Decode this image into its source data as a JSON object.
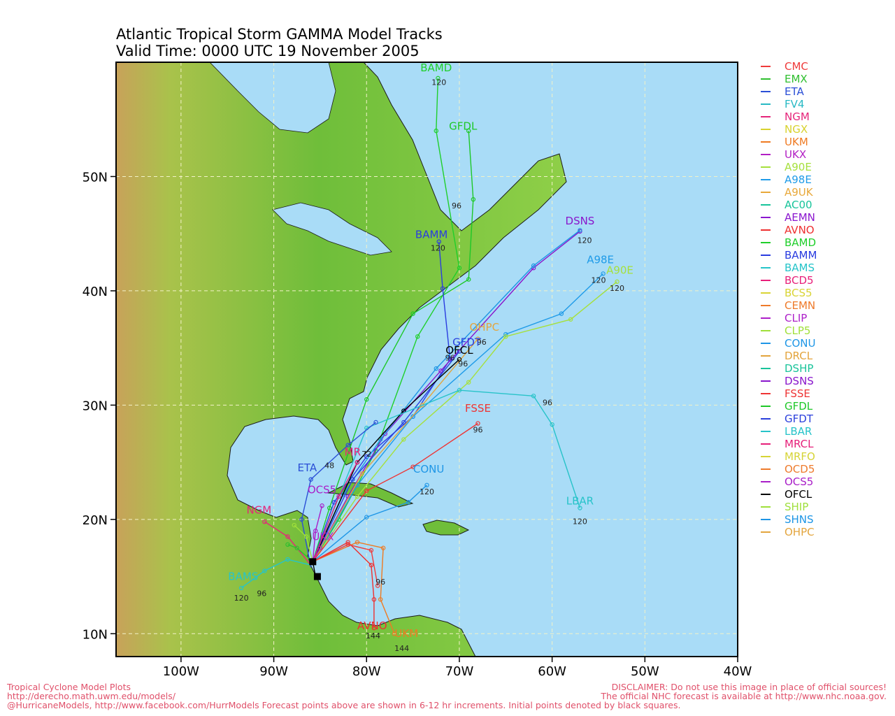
{
  "title": {
    "line1": "Atlantic Tropical Storm GAMMA Model Tracks",
    "line2": "Valid Time: 0000 UTC 19 November 2005"
  },
  "axes": {
    "lat_labels": [
      "10N",
      "20N",
      "30N",
      "40N",
      "50N"
    ],
    "lat_values": [
      10,
      20,
      30,
      40,
      50
    ],
    "lon_labels": [
      "100W",
      "90W",
      "80W",
      "70W",
      "60W",
      "50W",
      "40W"
    ],
    "lon_values": [
      -100,
      -90,
      -80,
      -70,
      -60,
      -50,
      -40
    ],
    "lon_range": [
      -107,
      -40
    ],
    "lat_range": [
      8,
      60
    ]
  },
  "colors": {
    "ocean": "#a9dcf7",
    "land_low": "#6fbe3a",
    "land_high": "#b58e45",
    "grid": "#f2f2c8",
    "footer": "#e0506a"
  },
  "legend": [
    {
      "label": "CMC",
      "color": "#ef3b3b"
    },
    {
      "label": "EMX",
      "color": "#2fbf2f"
    },
    {
      "label": "ETA",
      "color": "#2b4fd6"
    },
    {
      "label": "FV4",
      "color": "#28b9c4"
    },
    {
      "label": "NGM",
      "color": "#e5257a"
    },
    {
      "label": "NGX",
      "color": "#d8d22e"
    },
    {
      "label": "UKM",
      "color": "#ef7a22"
    },
    {
      "label": "UKX",
      "color": "#b21fc4"
    },
    {
      "label": "A90E",
      "color": "#a6e03c"
    },
    {
      "label": "A98E",
      "color": "#1f9be8"
    },
    {
      "label": "A9UK",
      "color": "#e8a83a"
    },
    {
      "label": "AC00",
      "color": "#17c49a"
    },
    {
      "label": "AEMN",
      "color": "#8b17cf"
    },
    {
      "label": "AVNO",
      "color": "#ee3030"
    },
    {
      "label": "BAMD",
      "color": "#1fcf2a"
    },
    {
      "label": "BAMM",
      "color": "#2a3ce0"
    },
    {
      "label": "BAMS",
      "color": "#26c4c9"
    },
    {
      "label": "BCD5",
      "color": "#e8207a"
    },
    {
      "label": "BCS5",
      "color": "#d9d435"
    },
    {
      "label": "CEMN",
      "color": "#ee7a2a"
    },
    {
      "label": "CLIP",
      "color": "#ad1fc9"
    },
    {
      "label": "CLP5",
      "color": "#a0e03a"
    },
    {
      "label": "CONU",
      "color": "#1e96e6"
    },
    {
      "label": "DRCL",
      "color": "#e3a43c"
    },
    {
      "label": "DSHP",
      "color": "#19c39a"
    },
    {
      "label": "DSNS",
      "color": "#8916cc"
    },
    {
      "label": "FSSE",
      "color": "#ee3434"
    },
    {
      "label": "GFDL",
      "color": "#1ec828"
    },
    {
      "label": "GFDT",
      "color": "#2b3fdc"
    },
    {
      "label": "LBAR",
      "color": "#27c3c9"
    },
    {
      "label": "MRCL",
      "color": "#e61f79"
    },
    {
      "label": "MRFO",
      "color": "#d6d436"
    },
    {
      "label": "OCD5",
      "color": "#ee7b2c"
    },
    {
      "label": "OCS5",
      "color": "#a91ec8"
    },
    {
      "label": "OFCL",
      "color": "#000000"
    },
    {
      "label": "SHIP",
      "color": "#9fdf3b"
    },
    {
      "label": "SHNS",
      "color": "#1d95e5"
    },
    {
      "label": "OHPC",
      "color": "#e3a53e"
    }
  ],
  "tracks": [
    {
      "name": "BAMD",
      "color": "#1fcf2a",
      "label": "BAMD",
      "label_at": [
        -72.5,
        59.2
      ],
      "tau_labels": [
        {
          "text": "120",
          "at": [
            -72.2,
            58.0
          ]
        }
      ],
      "points": [
        [
          -85.8,
          16.3
        ],
        [
          -83,
          20
        ],
        [
          -79,
          26
        ],
        [
          -74.5,
          36
        ],
        [
          -70,
          42
        ],
        [
          -72.5,
          54
        ],
        [
          -72.3,
          58.6
        ]
      ]
    },
    {
      "name": "GFDL",
      "color": "#1ec828",
      "label": "GFDL",
      "label_at": [
        -69.6,
        54.1
      ],
      "tau_labels": [
        {
          "text": "96",
          "at": [
            -70.3,
            47.2
          ]
        }
      ],
      "points": [
        [
          -85.8,
          16.3
        ],
        [
          -84,
          21
        ],
        [
          -80,
          30.5
        ],
        [
          -75,
          38
        ],
        [
          -69,
          41
        ],
        [
          -68.5,
          48
        ],
        [
          -69,
          54
        ]
      ]
    },
    {
      "name": "BAMM",
      "color": "#2a3ce0",
      "label": "BAMM",
      "label_at": [
        -73,
        44.6
      ],
      "tau_labels": [
        {
          "text": "120",
          "at": [
            -72.3,
            43.5
          ]
        }
      ],
      "points": [
        [
          -85.8,
          16.3
        ],
        [
          -83.5,
          21.5
        ],
        [
          -80,
          25.5
        ],
        [
          -75,
          29
        ],
        [
          -71,
          34
        ],
        [
          -71.8,
          40.2
        ],
        [
          -72.2,
          44.3
        ]
      ]
    },
    {
      "name": "DSNS",
      "color": "#8916cc",
      "label": "DSNS",
      "label_at": [
        -57,
        45.8
      ],
      "tau_labels": [
        {
          "text": "120",
          "at": [
            -56.5,
            44.2
          ]
        }
      ],
      "points": [
        [
          -85.8,
          16.3
        ],
        [
          -82,
          22
        ],
        [
          -78,
          27.5
        ],
        [
          -72,
          33
        ],
        [
          -62,
          42
        ],
        [
          -57,
          45.2
        ]
      ]
    },
    {
      "name": "SHNS",
      "color": "#1d95e5",
      "label": "",
      "label_at": [
        0,
        0
      ],
      "tau_labels": [],
      "points": [
        [
          -85.8,
          16.3
        ],
        [
          -82.5,
          22.2
        ],
        [
          -78.5,
          27
        ],
        [
          -72.5,
          33.2
        ],
        [
          -62,
          42.2
        ],
        [
          -57,
          45.3
        ]
      ]
    },
    {
      "name": "A98E",
      "color": "#1f9be8",
      "label": "A98E",
      "label_at": [
        -54.8,
        42.4
      ],
      "tau_labels": [
        {
          "text": "120",
          "at": [
            -55,
            40.7
          ]
        }
      ],
      "points": [
        [
          -85.8,
          16.3
        ],
        [
          -81,
          23
        ],
        [
          -75,
          29
        ],
        [
          -65,
          36.2
        ],
        [
          -59,
          38
        ],
        [
          -54.5,
          41.5
        ]
      ]
    },
    {
      "name": "A90E",
      "color": "#a6e03c",
      "label": "A90E",
      "label_at": [
        -52.7,
        41.5
      ],
      "tau_labels": [
        {
          "text": "120",
          "at": [
            -53,
            40
          ]
        }
      ],
      "points": [
        [
          -85.8,
          16.3
        ],
        [
          -81,
          22
        ],
        [
          -76,
          27
        ],
        [
          -69,
          32
        ],
        [
          -65,
          36
        ],
        [
          -58,
          37.5
        ],
        [
          -53,
          40.8
        ]
      ]
    },
    {
      "name": "OHPC",
      "color": "#e3a53e",
      "label": "OHPC",
      "label_at": [
        -67.3,
        36.5
      ],
      "tau_labels": [
        {
          "text": "96",
          "at": [
            -67.6,
            35.3
          ]
        }
      ],
      "points": [
        [
          -85.8,
          16.3
        ],
        [
          -80.5,
          24
        ],
        [
          -74,
          30
        ],
        [
          -68,
          35.8
        ]
      ]
    },
    {
      "name": "GFDT",
      "color": "#2b3fdc",
      "label": "GFDT",
      "label_at": [
        -69.2,
        35.2
      ],
      "tau_labels": [
        {
          "text": "96",
          "at": [
            -71,
            33.9
          ]
        }
      ],
      "points": [
        [
          -85.8,
          16.3
        ],
        [
          -81.5,
          23.5
        ],
        [
          -76,
          28.5
        ],
        [
          -70,
          34.7
        ]
      ]
    },
    {
      "name": "OFCL",
      "color": "#000000",
      "label": "OFCL",
      "label_at": [
        -70,
        34.5
      ],
      "tau_labels": [
        {
          "text": "96",
          "at": [
            -69.6,
            33.4
          ]
        }
      ],
      "points": [
        [
          -85.5,
          15
        ],
        [
          -85.8,
          16.3
        ],
        [
          -81,
          25
        ],
        [
          -76,
          29.5
        ],
        [
          -70,
          34
        ]
      ]
    },
    {
      "name": "LBAR",
      "color": "#27c3c9",
      "label": "LBAR",
      "label_at": [
        -57,
        21.3
      ],
      "tau_labels": [
        {
          "text": "96",
          "at": [
            -60.5,
            30
          ]
        },
        {
          "text": "120",
          "at": [
            -57,
            19.6
          ]
        }
      ],
      "points": [
        [
          -85.8,
          16.3
        ],
        [
          -80,
          28
        ],
        [
          -70,
          31.3
        ],
        [
          -62,
          30.8
        ],
        [
          -60,
          28.3
        ],
        [
          -57,
          21
        ]
      ]
    },
    {
      "name": "FSSE",
      "color": "#ee3434",
      "label": "FSSE",
      "label_at": [
        -68,
        29.4
      ],
      "tau_labels": [
        {
          "text": "96",
          "at": [
            -68,
            27.6
          ]
        }
      ],
      "points": [
        [
          -85.8,
          16.3
        ],
        [
          -80,
          22.5
        ],
        [
          -75,
          24.6
        ],
        [
          -68,
          28.4
        ]
      ]
    },
    {
      "name": "CONU",
      "color": "#1e96e6",
      "label": "CONU",
      "label_at": [
        -73.3,
        24.1
      ],
      "tau_labels": [
        {
          "text": "120",
          "at": [
            -73.5,
            22.2
          ]
        }
      ],
      "points": [
        [
          -85.8,
          16.3
        ],
        [
          -80,
          20.2
        ],
        [
          -75.5,
          21.5
        ],
        [
          -73.5,
          23
        ]
      ]
    },
    {
      "name": "ETA",
      "color": "#2b4fd6",
      "label": "ETA",
      "label_at": [
        -86.4,
        24.2
      ],
      "tau_labels": [
        {
          "text": "48",
          "at": [
            -84,
            24.5
          ]
        }
      ],
      "points": [
        [
          -86,
          15.8
        ],
        [
          -87,
          20
        ],
        [
          -86,
          23.5
        ],
        [
          -82,
          26.5
        ],
        [
          -79,
          28.5
        ]
      ]
    },
    {
      "name": "NGM",
      "color": "#e5257a",
      "label": "NGM",
      "label_at": [
        -91.6,
        20.5
      ],
      "tau_labels": [],
      "points": [
        [
          -86,
          16
        ],
        [
          -88.5,
          18.5
        ],
        [
          -91,
          19.8
        ]
      ]
    },
    {
      "name": "BAMS",
      "color": "#26c4c9",
      "label": "BAMS",
      "label_at": [
        -93.3,
        14.7
      ],
      "tau_labels": [
        {
          "text": "120",
          "at": [
            -93.5,
            12.9
          ]
        },
        {
          "text": "96",
          "at": [
            -91.3,
            13.3
          ]
        }
      ],
      "points": [
        [
          -86,
          16
        ],
        [
          -88.5,
          16.5
        ],
        [
          -91,
          15.5
        ],
        [
          -93.5,
          14
        ]
      ]
    },
    {
      "name": "AVNO",
      "color": "#ee3030",
      "label": "AVNO",
      "label_at": [
        -79.4,
        10.4
      ],
      "tau_labels": [
        {
          "text": "144",
          "at": [
            -79.3,
            9.6
          ]
        }
      ],
      "points": [
        [
          -85.8,
          16.3
        ],
        [
          -82,
          18
        ],
        [
          -79.5,
          16
        ],
        [
          -79.2,
          13
        ],
        [
          -79.2,
          10.5
        ]
      ]
    },
    {
      "name": "UKM",
      "color": "#ef7a22",
      "label": "UKM",
      "label_at": [
        -75.7,
        9.7
      ],
      "tau_labels": [
        {
          "text": "144",
          "at": [
            -76.2,
            8.5
          ]
        }
      ],
      "points": [
        [
          -85.8,
          16.3
        ],
        [
          -81,
          18
        ],
        [
          -78.2,
          17.5
        ],
        [
          -78.5,
          13
        ],
        [
          -77,
          10
        ]
      ]
    },
    {
      "name": "CMC",
      "color": "#ef3b3b",
      "label": "",
      "label_at": [
        0,
        0
      ],
      "tau_labels": [
        {
          "text": "96",
          "at": [
            -78.5,
            14.3
          ]
        }
      ],
      "points": [
        [
          -85.8,
          16.3
        ],
        [
          -82,
          17.8
        ],
        [
          -79.5,
          17.3
        ],
        [
          -78.8,
          14.2
        ]
      ]
    },
    {
      "name": "EMX",
      "color": "#2fbf2f",
      "label": "",
      "label_at": [
        0,
        0
      ],
      "tau_labels": [],
      "points": [
        [
          -85.8,
          16.3
        ],
        [
          -87.5,
          17.5
        ],
        [
          -88.5,
          17.8
        ]
      ]
    },
    {
      "name": "CLP5",
      "color": "#a0e03a",
      "label": "",
      "label_at": [
        0,
        0
      ],
      "tau_labels": [],
      "points": [
        [
          -85.8,
          16.3
        ],
        [
          -86.5,
          18.5
        ],
        [
          -87.8,
          19.5
        ]
      ]
    },
    {
      "name": "UKX",
      "color": "#b21fc4",
      "label": "UKX",
      "label_at": [
        -84.7,
        18.2
      ],
      "tau_labels": [],
      "points": [
        [
          -85.8,
          16.3
        ],
        [
          -85,
          17.5
        ]
      ]
    },
    {
      "name": "OCS5",
      "color": "#a91ec8",
      "label": "OCS5",
      "label_at": [
        -84.8,
        22.3
      ],
      "tau_labels": [],
      "points": [
        [
          -85.8,
          16.3
        ],
        [
          -85.5,
          19
        ],
        [
          -84.8,
          21.2
        ]
      ]
    },
    {
      "name": "MRCL",
      "color": "#e61f79",
      "label": "MR",
      "label_at": [
        -81.5,
        25.6
      ],
      "tau_labels": [
        {
          "text": "72",
          "at": [
            -80,
            25.5
          ]
        }
      ],
      "points": [
        [
          -85.8,
          16.3
        ],
        [
          -83,
          22
        ],
        [
          -81,
          25
        ]
      ]
    }
  ],
  "footer": {
    "left": [
      "Tropical Cyclone Model Plots",
      "http://derecho.math.uwm.edu/models/",
      "@HurricaneModels, http://www.facebook.com/HurrModels  Forecast points above are shown in 6-12 hr increments. Initial points denoted by black squares."
    ],
    "right": [
      "DISCLAIMER: Do not use this image in place of official sources!",
      "The official NHC forecast is available at http://www.nhc.noaa.gov."
    ]
  }
}
